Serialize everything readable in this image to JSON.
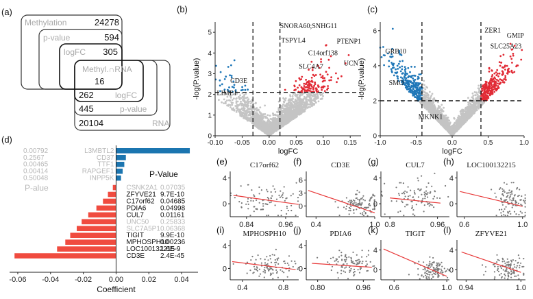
{
  "panels": {
    "a": "(a)",
    "b": "(b)",
    "c": "(c)",
    "d": "(d)",
    "e": "(e)",
    "f": "(f)",
    "g": "(g)",
    "h": "(h)",
    "i": "(i)",
    "j": "(j)",
    "k": "(k)",
    "l": "(l)"
  },
  "venn": {
    "methylation": {
      "label": "Methylation",
      "count": "24278"
    },
    "pvalue": {
      "label": "p-value",
      "count": "594"
    },
    "logfc": {
      "label": "logFC",
      "count": "305"
    },
    "overlap": {
      "label": "Methyl.∩RNA",
      "count": "16"
    },
    "rna_logfc": {
      "label": "logFC",
      "count": "262"
    },
    "rna_pvalue": {
      "label": "p-value",
      "count": "445"
    },
    "rna": {
      "label": "RNA",
      "count": "20104"
    }
  },
  "colors": {
    "gray_point": "#c4c4c4",
    "red": "#e12a35",
    "blue": "#1f77b8",
    "bar_red": "#f04b3f",
    "bar_blue": "#1b75b0",
    "light_text": "#b8b8b8",
    "fit_line": "#e83a3a"
  },
  "chart_data": [
    {
      "id": "b",
      "type": "scatter",
      "title": "",
      "xlabel": "logFC",
      "ylabel": "-log(P.value)",
      "xlim": [
        -0.1,
        0.17
      ],
      "ylim": [
        0,
        5.5
      ],
      "xticks": [
        "-0.10",
        "-0.05",
        "0.00",
        "0.05",
        "0.10",
        "0.15"
      ],
      "yticks": [
        "0",
        "1",
        "2",
        "3",
        "4",
        "5"
      ],
      "thresholds": {
        "x": [
          -0.03,
          0.02
        ],
        "y": 2.1
      },
      "labels": [
        {
          "text": "SNORA60;SNHG11",
          "x": 0.02,
          "y": 5.2
        },
        {
          "text": "TSPYL4",
          "x": 0.022,
          "y": 4.5
        },
        {
          "text": "PTENP1",
          "x": 0.125,
          "y": 4.45
        },
        {
          "text": "C14orf138",
          "x": 0.072,
          "y": 3.9
        },
        {
          "text": "UCN",
          "x": 0.138,
          "y": 3.4
        },
        {
          "text": "SLC4A7",
          "x": 0.055,
          "y": 3.25
        },
        {
          "text": "CD3E",
          "x": -0.072,
          "y": 2.55
        },
        {
          "text": "LIME1",
          "x": -0.097,
          "y": 1.95
        }
      ]
    },
    {
      "id": "c",
      "type": "scatter",
      "title": "",
      "xlabel": "logFC",
      "ylabel": "-log(P.value)",
      "xlim": [
        -1.0,
        1.0
      ],
      "ylim": [
        0,
        6.5
      ],
      "xticks": [
        "-1.0",
        "-0.5",
        "0.0",
        "0.5",
        "1.0"
      ],
      "yticks": [
        "0",
        "2",
        "4",
        "6"
      ],
      "thresholds": {
        "x": [
          -0.42,
          0.4
        ],
        "y": 2.0
      },
      "labels": [
        {
          "text": "ZER1",
          "x": 0.45,
          "y": 5.9
        },
        {
          "text": "GMIP",
          "x": 0.76,
          "y": 5.6
        },
        {
          "text": "SLC25A23",
          "x": 0.53,
          "y": 5.0
        },
        {
          "text": "GRB10",
          "x": -0.93,
          "y": 4.7
        },
        {
          "text": "SMO",
          "x": -0.88,
          "y": 2.9
        },
        {
          "text": "MKNK1",
          "x": -0.47,
          "y": 0.95
        }
      ]
    },
    {
      "id": "d",
      "type": "bar",
      "orientation": "horizontal",
      "xlabel": "Coefficient",
      "pvalue_header": "P-Value",
      "pvalue_header_left": "P-alue",
      "xlim": [
        -0.065,
        0.05
      ],
      "xticks": [
        "-0.06",
        "-0.04",
        "-0.02",
        "0.00",
        "0.02",
        "0.04"
      ],
      "positive": [
        {
          "gene": "L3MBTL2",
          "pvalue": "0.00792",
          "value": 0.045
        },
        {
          "gene": "CD37",
          "pvalue": "0.2567",
          "value": 0.006
        },
        {
          "gene": "TTF1",
          "pvalue": "0.00465",
          "value": 0.005
        },
        {
          "gene": "RAPGEF1",
          "pvalue": "0.00414",
          "value": 0.004
        },
        {
          "gene": "INPP5K",
          "pvalue": "0.50048",
          "value": 0.003
        }
      ],
      "negative": [
        {
          "gene": "CSNK2A1",
          "pvalue": "0.07035",
          "value": -0.002,
          "highlight": false
        },
        {
          "gene": "ZFYVE21",
          "pvalue": "9.7E-10",
          "value": -0.005,
          "highlight": true
        },
        {
          "gene": "C17orf62",
          "pvalue": "0.04685",
          "value": -0.008,
          "highlight": true
        },
        {
          "gene": "PDIA6",
          "pvalue": "0.04998",
          "value": -0.012,
          "highlight": true
        },
        {
          "gene": "CUL7",
          "pvalue": "0.01161",
          "value": -0.017,
          "highlight": true
        },
        {
          "gene": "UNC50",
          "pvalue": "0.25833",
          "value": -0.021,
          "highlight": false
        },
        {
          "gene": "SLC7A5P1",
          "pvalue": "0.06368",
          "value": -0.024,
          "highlight": false
        },
        {
          "gene": "TIGIT",
          "pvalue": "9.9E-10",
          "value": -0.028,
          "highlight": true
        },
        {
          "gene": "MPHOSPH10",
          "pvalue": "0.00236",
          "value": -0.031,
          "highlight": true
        },
        {
          "gene": "LOC100132215",
          "pvalue": "1.6E-9",
          "value": -0.036,
          "highlight": true
        },
        {
          "gene": "CD3E",
          "pvalue": "2.4E-45",
          "value": -0.062,
          "highlight": true
        }
      ]
    },
    {
      "id": "e",
      "type": "scatter",
      "title": "C17orf62",
      "xlim": [
        0.79,
        1.0
      ],
      "ylim": [
        -2,
        5
      ],
      "xticks": [
        {
          "v": 0.84,
          "t": "0.84"
        },
        {
          "v": 0.96,
          "t": "0.96"
        }
      ],
      "yticks": [
        {
          "v": 0,
          "t": "0"
        },
        {
          "v": 4,
          "t": "4"
        }
      ],
      "fit": [
        [
          0.8,
          1.3
        ],
        [
          1.0,
          -0.1
        ]
      ],
      "cloud": {
        "cx": 0.9,
        "sx": 0.05,
        "cy": 0.5,
        "sy": 1.3,
        "n": 90
      }
    },
    {
      "id": "f",
      "type": "scatter",
      "title": "CD3E",
      "xlim": [
        0.3,
        1.0
      ],
      "ylim": [
        -2.5,
        8
      ],
      "xticks": [
        {
          "v": 0.4,
          "t": "0.4"
        },
        {
          "v": 1.0,
          "t": "1.0"
        }
      ],
      "yticks": [
        {
          "v": 0,
          "t": "0"
        },
        {
          "v": 3,
          "t": "3"
        },
        {
          "v": 6,
          "t": "6"
        }
      ],
      "fit": [
        [
          0.32,
          3.6
        ],
        [
          1.0,
          -1.6
        ]
      ],
      "cloud": {
        "cx": 0.85,
        "sx": 0.1,
        "cy": 0.2,
        "sy": 1.2,
        "n": 110
      }
    },
    {
      "id": "g",
      "type": "scatter",
      "title": "CUL7",
      "xlim": [
        0.77,
        1.0
      ],
      "ylim": [
        -2,
        5
      ],
      "xticks": [
        {
          "v": 0.8,
          "t": "0.8"
        },
        {
          "v": 0.96,
          "t": "0.96"
        }
      ],
      "yticks": [
        {
          "v": 0,
          "t": "0"
        },
        {
          "v": 4,
          "t": "4"
        }
      ],
      "fit": [
        [
          0.8,
          0.9
        ],
        [
          0.97,
          0.1
        ]
      ],
      "cloud": {
        "cx": 0.89,
        "sx": 0.05,
        "cy": 0.8,
        "sy": 1.4,
        "n": 100
      }
    },
    {
      "id": "h",
      "type": "scatter",
      "title": "LOC100132215",
      "xlim": [
        0.55,
        1.02
      ],
      "ylim": [
        -2,
        5
      ],
      "xticks": [
        {
          "v": 0.6,
          "t": "0.6"
        },
        {
          "v": 1.0,
          "t": "1.0"
        }
      ],
      "yticks": [
        {
          "v": 0,
          "t": "0"
        },
        {
          "v": 4,
          "t": "4"
        }
      ],
      "fit": [
        [
          0.57,
          1.9
        ],
        [
          1.0,
          -0.4
        ]
      ],
      "cloud": {
        "cx": 0.92,
        "sx": 0.06,
        "cy": 0.4,
        "sy": 1.2,
        "n": 110
      }
    },
    {
      "id": "i",
      "type": "scatter",
      "title": "MPHOSPH10",
      "xlim": [
        0.28,
        0.95
      ],
      "ylim": [
        -2,
        5
      ],
      "xticks": [
        {
          "v": 0.4,
          "t": "0.4"
        },
        {
          "v": 0.8,
          "t": "0.8"
        }
      ],
      "yticks": [
        {
          "v": 0,
          "t": "0"
        },
        {
          "v": 4,
          "t": "4"
        }
      ],
      "fit": [
        [
          0.3,
          1.2
        ],
        [
          0.92,
          -0.2
        ]
      ],
      "cloud": {
        "cx": 0.68,
        "sx": 0.12,
        "cy": 0.5,
        "sy": 1.1,
        "n": 100
      }
    },
    {
      "id": "j",
      "type": "scatter",
      "title": "PDIA6",
      "xlim": [
        0.76,
        1.0
      ],
      "ylim": [
        -2,
        5
      ],
      "xticks": [
        {
          "v": 0.8,
          "t": "0.80"
        },
        {
          "v": 0.96,
          "t": "0.96"
        }
      ],
      "yticks": [
        {
          "v": 0,
          "t": "0"
        },
        {
          "v": 4,
          "t": "4"
        }
      ],
      "fit": [
        [
          0.78,
          0.9
        ],
        [
          0.99,
          0.2
        ]
      ],
      "cloud": {
        "cx": 0.92,
        "sx": 0.04,
        "cy": 0.7,
        "sy": 1.0,
        "n": 100
      }
    },
    {
      "id": "k",
      "type": "scatter",
      "title": "TIGIT",
      "xlim": [
        0.5,
        1.02
      ],
      "ylim": [
        -2,
        6
      ],
      "xticks": [
        {
          "v": 0.6,
          "t": "0.6"
        },
        {
          "v": 1.0,
          "t": "1.0"
        }
      ],
      "yticks": [
        {
          "v": 0,
          "t": "0"
        },
        {
          "v": 4,
          "t": "4"
        }
      ],
      "fit": [
        [
          0.52,
          4.2
        ],
        [
          1.0,
          -1.3
        ]
      ],
      "cloud": {
        "cx": 0.9,
        "sx": 0.06,
        "cy": 0.0,
        "sy": 1.0,
        "n": 110
      }
    },
    {
      "id": "l",
      "type": "scatter",
      "title": "ZFYVE21",
      "xlim": [
        0.93,
        1.005
      ],
      "ylim": [
        -2,
        6
      ],
      "xticks": [
        {
          "v": 0.94,
          "t": "0.94"
        },
        {
          "v": 1.0,
          "t": "1.0"
        }
      ],
      "yticks": [
        {
          "v": 0,
          "t": "0"
        },
        {
          "v": 4,
          "t": "4"
        }
      ],
      "fit": [
        [
          0.935,
          3.6
        ],
        [
          1.0,
          -0.5
        ]
      ],
      "cloud": {
        "cx": 0.985,
        "sx": 0.01,
        "cy": 0.4,
        "sy": 1.1,
        "n": 110
      }
    }
  ]
}
